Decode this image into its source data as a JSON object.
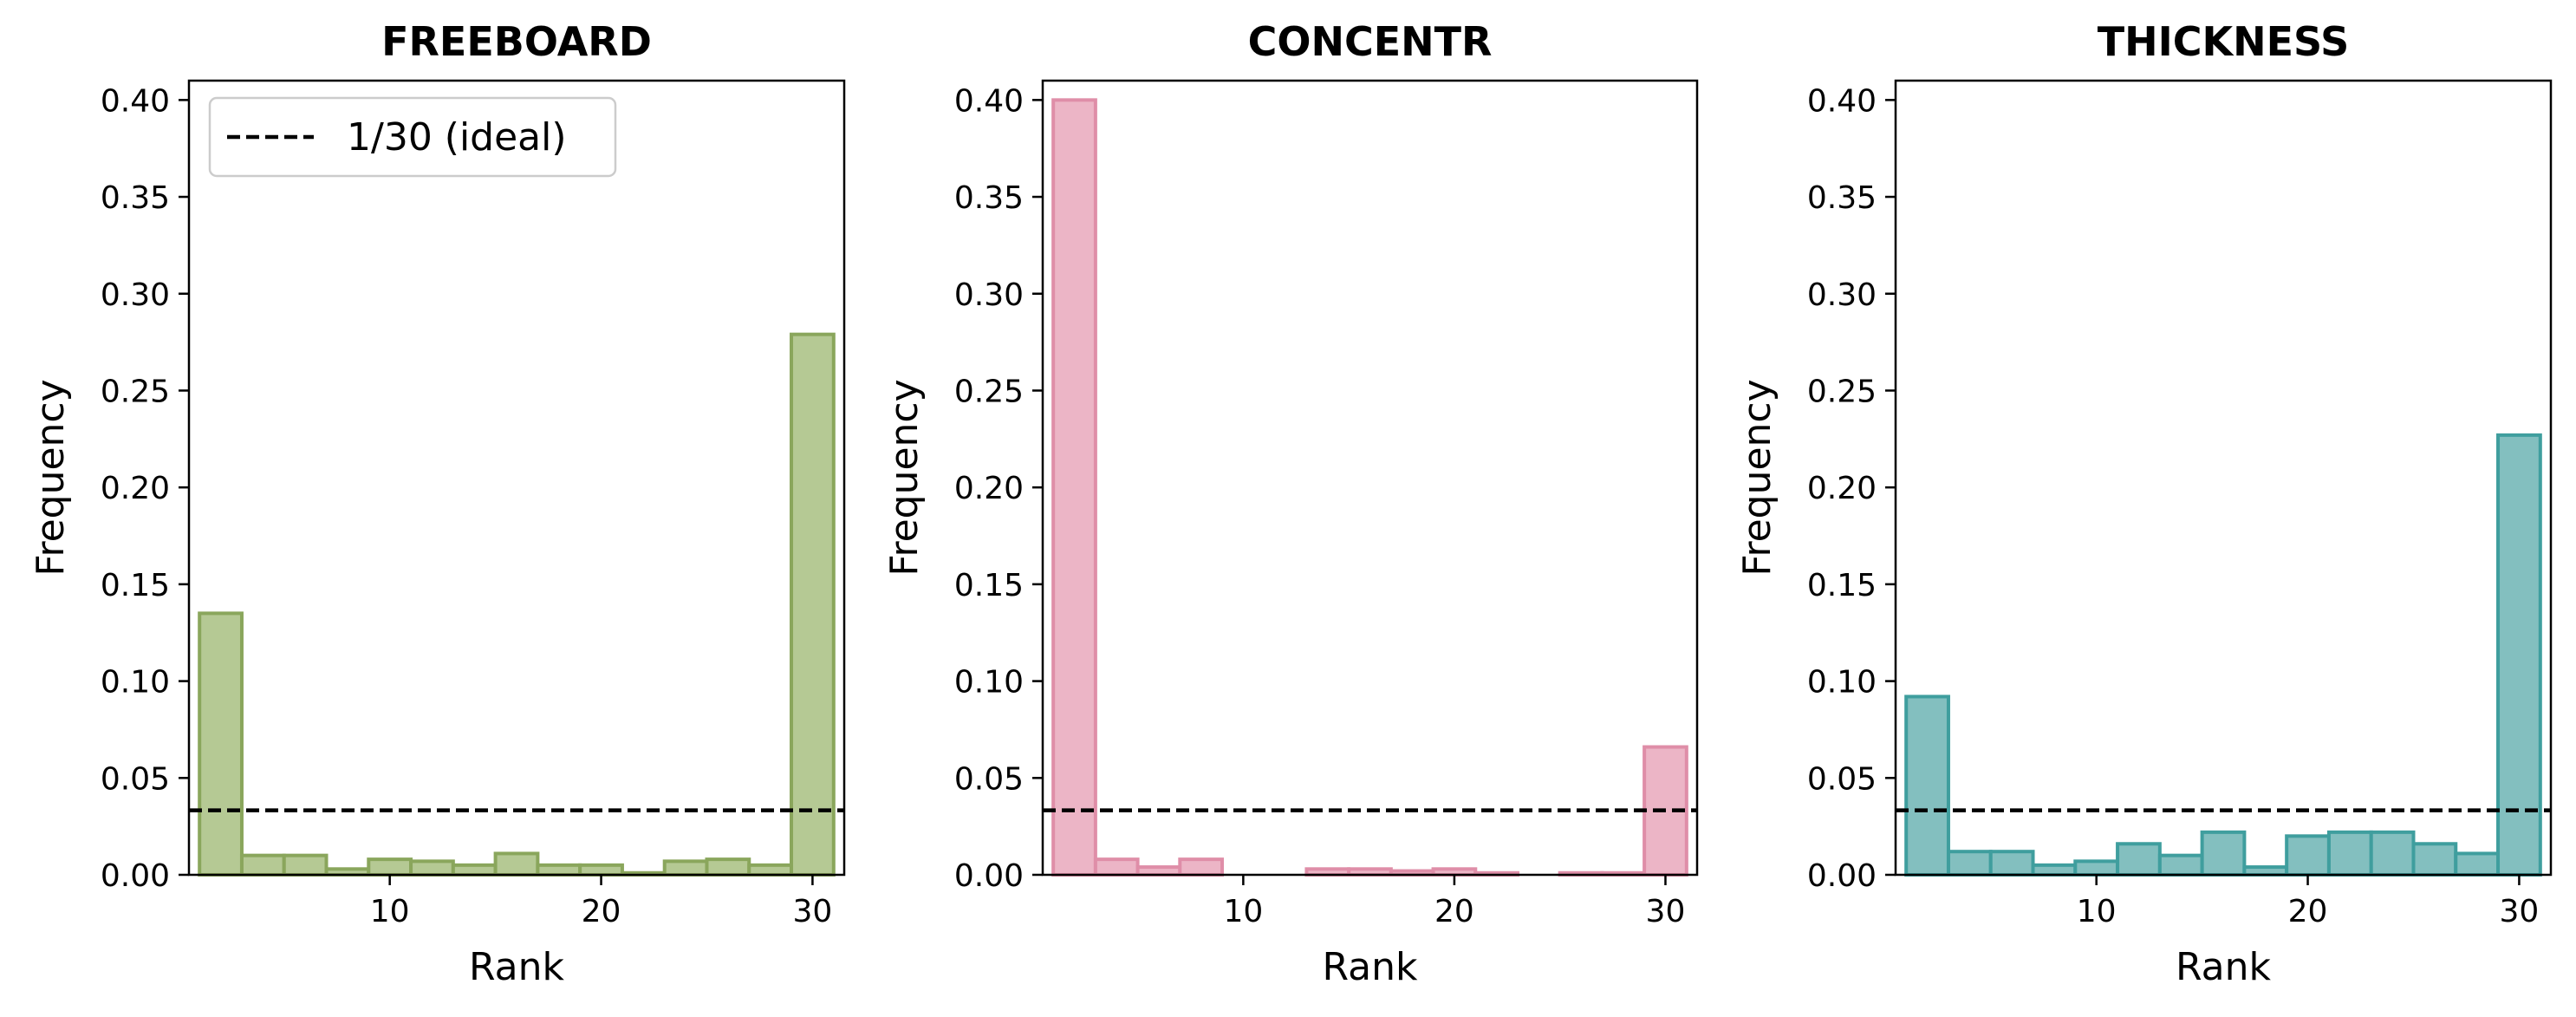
{
  "chart_data": [
    {
      "type": "bar",
      "title": "FREEBOARD",
      "xlabel": "Rank",
      "ylabel": "Frequency",
      "xlim": [
        0.5,
        31.5
      ],
      "ylim": [
        0,
        0.41
      ],
      "xticks": [
        "10",
        "20",
        "30"
      ],
      "yticks": [
        "0.00",
        "0.05",
        "0.10",
        "0.15",
        "0.20",
        "0.25",
        "0.30",
        "0.35",
        "0.40"
      ],
      "bin_width": 2,
      "x": [
        2,
        4,
        6,
        8,
        10,
        12,
        14,
        16,
        18,
        20,
        22,
        24,
        26,
        28,
        30
      ],
      "values": [
        0.135,
        0.01,
        0.01,
        0.003,
        0.008,
        0.007,
        0.005,
        0.011,
        0.005,
        0.005,
        0.001,
        0.007,
        0.008,
        0.005,
        0.279
      ],
      "reference_line": {
        "y": 0.0333,
        "label": "1/30 (ideal)"
      },
      "legend": {
        "position": "upper left",
        "entries": [
          "1/30 (ideal)"
        ]
      },
      "grid": false,
      "colors": {
        "fill": "#b5c994",
        "edge": "#8aa65c"
      }
    },
    {
      "type": "bar",
      "title": "CONCENTR",
      "xlabel": "Rank",
      "ylabel": "Frequency",
      "xlim": [
        0.5,
        31.5
      ],
      "ylim": [
        0,
        0.41
      ],
      "xticks": [
        "10",
        "20",
        "30"
      ],
      "yticks": [
        "0.00",
        "0.05",
        "0.10",
        "0.15",
        "0.20",
        "0.25",
        "0.30",
        "0.35",
        "0.40"
      ],
      "bin_width": 2,
      "x": [
        2,
        4,
        6,
        8,
        10,
        12,
        14,
        16,
        18,
        20,
        22,
        24,
        26,
        28,
        30
      ],
      "values": [
        0.4,
        0.008,
        0.004,
        0.008,
        0.0,
        0.0,
        0.003,
        0.003,
        0.002,
        0.003,
        0.001,
        0.0,
        0.001,
        0.001,
        0.066
      ],
      "reference_line": {
        "y": 0.0333,
        "label": "1/30 (ideal)"
      },
      "grid": false,
      "colors": {
        "fill": "#ecb5c6",
        "edge": "#df8ea8"
      }
    },
    {
      "type": "bar",
      "title": "THICKNESS",
      "xlabel": "Rank",
      "ylabel": "Frequency",
      "xlim": [
        0.5,
        31.5
      ],
      "ylim": [
        0,
        0.41
      ],
      "xticks": [
        "10",
        "20",
        "30"
      ],
      "yticks": [
        "0.00",
        "0.05",
        "0.10",
        "0.15",
        "0.20",
        "0.25",
        "0.30",
        "0.35",
        "0.40"
      ],
      "bin_width": 2,
      "x": [
        2,
        4,
        6,
        8,
        10,
        12,
        14,
        16,
        18,
        20,
        22,
        24,
        26,
        28,
        30
      ],
      "values": [
        0.092,
        0.012,
        0.012,
        0.005,
        0.007,
        0.016,
        0.01,
        0.022,
        0.004,
        0.02,
        0.022,
        0.022,
        0.016,
        0.011,
        0.227
      ],
      "reference_line": {
        "y": 0.0333,
        "label": "1/30 (ideal)"
      },
      "grid": false,
      "colors": {
        "fill": "#83bfbf",
        "edge": "#3f9e9e"
      }
    }
  ]
}
